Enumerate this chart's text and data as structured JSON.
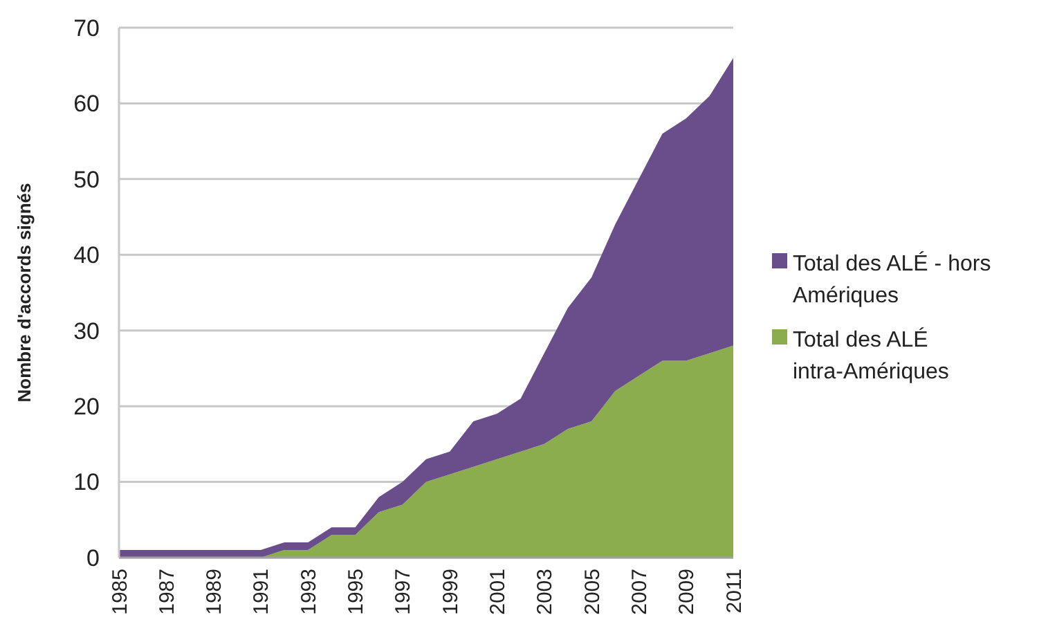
{
  "chart_data": {
    "type": "area",
    "stacked": true,
    "ylabel": "Nombre d'accords signés",
    "x": [
      1985,
      1986,
      1987,
      1988,
      1989,
      1990,
      1991,
      1992,
      1993,
      1994,
      1995,
      1996,
      1997,
      1998,
      1999,
      2000,
      2001,
      2002,
      2003,
      2004,
      2005,
      2006,
      2007,
      2008,
      2009,
      2010,
      2011
    ],
    "series": [
      {
        "name": "Total des ALÉ intra-Amériques",
        "color": "#8cad4e",
        "values": [
          0,
          0,
          0,
          0,
          0,
          0,
          0,
          1,
          1,
          3,
          3,
          6,
          7,
          10,
          11,
          12,
          13,
          14,
          15,
          17,
          18,
          22,
          24,
          26,
          26,
          27,
          28
        ]
      },
      {
        "name": "Total des ALÉ - hors Amériques",
        "color": "#6a4e8c",
        "values": [
          1,
          1,
          1,
          1,
          1,
          1,
          1,
          1,
          1,
          1,
          1,
          2,
          3,
          3,
          3,
          6,
          6,
          7,
          12,
          16,
          19,
          22,
          26,
          30,
          32,
          34,
          38
        ]
      }
    ],
    "xlim": [
      1985,
      2011
    ],
    "xticks": [
      1985,
      1987,
      1989,
      1991,
      1993,
      1995,
      1997,
      1999,
      2001,
      2003,
      2005,
      2007,
      2009,
      2011
    ],
    "ylim": [
      0,
      70
    ],
    "yticks": [
      0,
      10,
      20,
      30,
      40,
      50,
      60,
      70
    ],
    "grid": "y",
    "legend": "right"
  }
}
